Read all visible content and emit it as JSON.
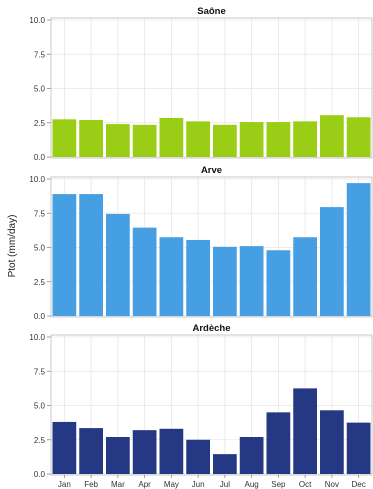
{
  "ylabel": "Ptot (mm/day)",
  "chart_data": {
    "type": "bar",
    "categories": [
      "Jan",
      "Feb",
      "Mar",
      "Apr",
      "May",
      "Jun",
      "Jul",
      "Aug",
      "Sep",
      "Oct",
      "Nov",
      "Dec"
    ],
    "ylabel": "Ptot (mm/day)",
    "grid": true,
    "ylim": [
      0,
      10
    ],
    "yticks": [
      "0.0",
      "2.5",
      "5.0",
      "7.5",
      "10.0"
    ],
    "panels": [
      {
        "title": "Saône",
        "color": "#9acd15",
        "values": [
          2.75,
          2.7,
          2.4,
          2.35,
          2.85,
          2.6,
          2.35,
          2.55,
          2.55,
          2.6,
          3.05,
          2.9
        ]
      },
      {
        "title": "Arve",
        "color": "#479fe3",
        "values": [
          8.9,
          8.9,
          7.45,
          6.45,
          5.75,
          5.55,
          5.05,
          5.1,
          4.8,
          5.75,
          7.95,
          9.7
        ]
      },
      {
        "title": "Ardèche",
        "color": "#253883",
        "values": [
          3.8,
          3.35,
          2.7,
          3.2,
          3.3,
          2.5,
          1.45,
          2.7,
          4.5,
          6.25,
          4.65,
          3.75
        ]
      }
    ]
  }
}
